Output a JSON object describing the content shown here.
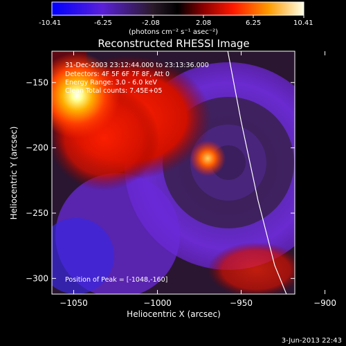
{
  "colorbar": {
    "ticks": [
      "-10.41",
      "-6.25",
      "-2.08",
      "2.08",
      "6.25",
      "10.41"
    ],
    "units": "(photons cm⁻² s⁻¹ asec⁻²)",
    "range": [
      -10.41,
      10.41
    ]
  },
  "colors": {
    "background": "#000000",
    "text": "#ffffff",
    "colormap": [
      "#0000ff",
      "#6a1fd0",
      "#3a1c3a",
      "#000000",
      "#8a0000",
      "#ff2000",
      "#ff8a00",
      "#ffff80",
      "#ffffff"
    ]
  },
  "chart_data": {
    "type": "heatmap",
    "title": "Reconstructed RHESSI Image",
    "xlabel": "Heliocentric X (arcsec)",
    "ylabel": "Heliocentric Y (arcsec)",
    "xlim": [
      -1063,
      -918
    ],
    "ylim": [
      -312,
      -126
    ],
    "x_ticks": [
      -1050,
      -1000,
      -950,
      -900
    ],
    "y_ticks": [
      -150,
      -200,
      -250,
      -300
    ],
    "x_tick_labels": [
      "−1050",
      "−1000",
      "−950",
      "−900"
    ],
    "y_tick_labels": [
      "−150",
      "−200",
      "−250",
      "−300"
    ],
    "annotations": {
      "time": "31-Dec-2003 23:12:44.000 to 23:13:36.000",
      "detectors": "Detectors: 4F 5F 6F 7F 8F, Att 0",
      "energy": "Energy Range: 3.0 - 6.0 keV",
      "method": "Clean      Total counts: 7.45E+05",
      "peak": "Position of Peak = [-1048,-160]"
    },
    "sources": [
      {
        "x": -1048,
        "y": -160,
        "value": 10.41
      },
      {
        "x": -970,
        "y": -208,
        "value": 7.0
      }
    ],
    "limb": [
      [
        -958,
        -126
      ],
      [
        -950,
        -180
      ],
      [
        -940,
        -240
      ],
      [
        -930,
        -290
      ],
      [
        -923,
        -312
      ]
    ]
  },
  "footer": {
    "date": "3-Jun-2013 22:43"
  }
}
